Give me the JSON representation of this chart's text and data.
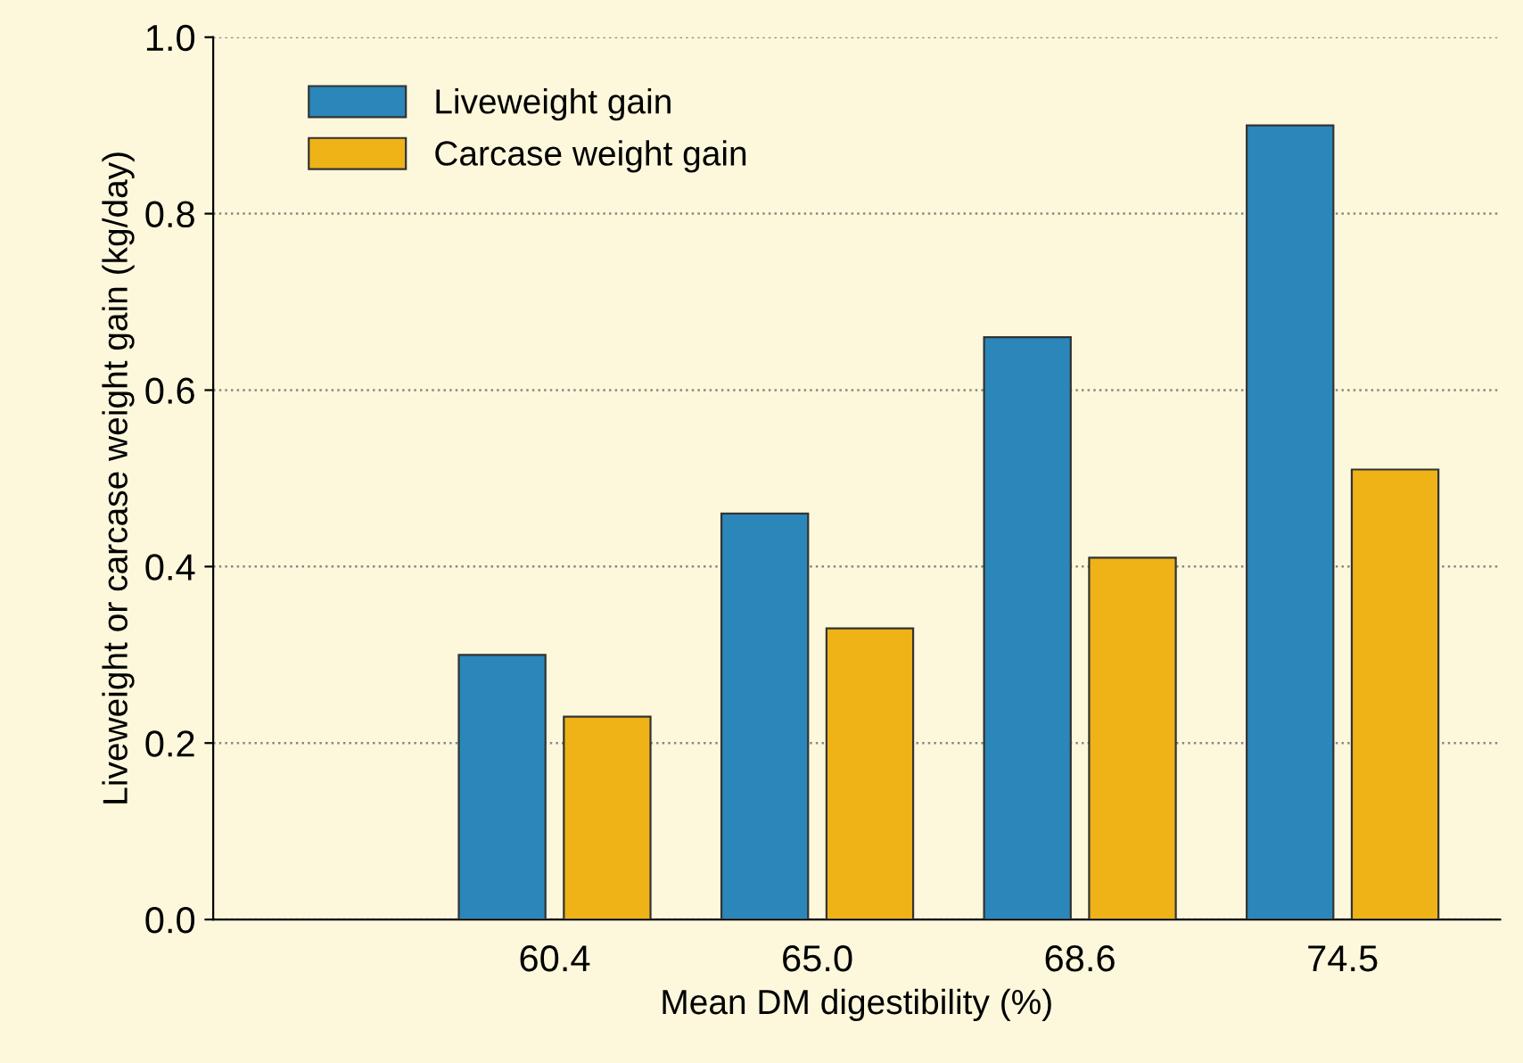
{
  "chart_data": {
    "type": "bar",
    "xlabel": "Mean DM digestibility (%)",
    "ylabel": "Liveweight or carcase weight gain (kg/day)",
    "categories": [
      "60.4",
      "65.0",
      "68.6",
      "74.5"
    ],
    "series": [
      {
        "name": "Liveweight gain",
        "color": "#2b87b9",
        "values": [
          0.3,
          0.46,
          0.66,
          0.9
        ]
      },
      {
        "name": "Carcase weight gain",
        "color": "#efb318",
        "values": [
          0.23,
          0.33,
          0.41,
          0.51
        ]
      }
    ],
    "ylim": [
      0,
      1.0
    ],
    "yticks": [
      {
        "value": 0,
        "label": "0.0"
      },
      0.2,
      0.4,
      0.6,
      0.8,
      {
        "value": 1.0,
        "label": "1.0"
      }
    ],
    "grid": "y",
    "legend": "top left"
  }
}
